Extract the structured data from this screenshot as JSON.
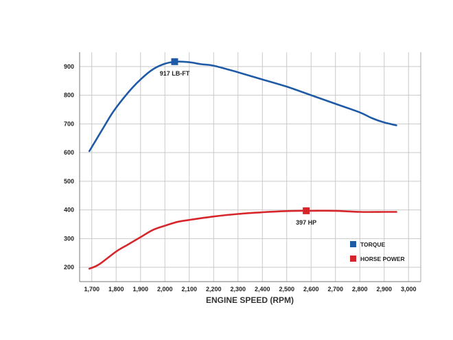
{
  "chart_data": {
    "type": "line",
    "xlabel": "ENGINE SPEED (RPM)",
    "ylabel": "",
    "xlim": [
      1650,
      3050
    ],
    "ylim": [
      150,
      950
    ],
    "x_ticks": [
      "1,700",
      "1,800",
      "1,900",
      "2,000",
      "2,100",
      "2,200",
      "2,300",
      "2,400",
      "2,500",
      "2,600",
      "2,700",
      "2,800",
      "2,900",
      "3,000"
    ],
    "x_tick_values": [
      1700,
      1800,
      1900,
      2000,
      2100,
      2200,
      2300,
      2400,
      2500,
      2600,
      2700,
      2800,
      2900,
      3000
    ],
    "y_ticks": [
      "200",
      "300",
      "400",
      "500",
      "600",
      "700",
      "800",
      "900"
    ],
    "y_tick_values": [
      200,
      300,
      400,
      500,
      600,
      700,
      800,
      900
    ],
    "grid": true,
    "legend_position": "bottom-right",
    "series": [
      {
        "name": "TORQUE",
        "color": "#1f5aa6",
        "x": [
          1690,
          1750,
          1790,
          1850,
          1900,
          1950,
          2000,
          2050,
          2100,
          2150,
          2200,
          2300,
          2400,
          2500,
          2600,
          2700,
          2800,
          2850,
          2900,
          2950
        ],
        "y": [
          605,
          690,
          745,
          810,
          855,
          890,
          910,
          917,
          915,
          908,
          903,
          880,
          855,
          830,
          800,
          770,
          740,
          720,
          705,
          695
        ]
      },
      {
        "name": "HORSE POWER",
        "color": "#d6262b",
        "x": [
          1690,
          1730,
          1800,
          1850,
          1900,
          1950,
          2000,
          2050,
          2100,
          2200,
          2300,
          2400,
          2500,
          2550,
          2600,
          2700,
          2800,
          2900,
          2950
        ],
        "y": [
          195,
          210,
          255,
          280,
          305,
          330,
          345,
          358,
          365,
          377,
          386,
          392,
          396,
          397,
          397,
          397,
          393,
          393,
          393
        ]
      }
    ],
    "annotations": [
      {
        "text": "917 LB-FT",
        "x": 2040,
        "y": 917,
        "series": 0
      },
      {
        "text": "397 HP",
        "x": 2580,
        "y": 397,
        "series": 1
      }
    ]
  }
}
